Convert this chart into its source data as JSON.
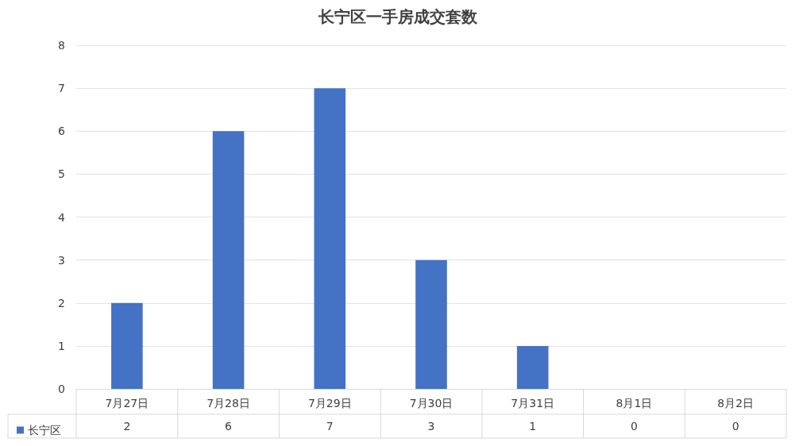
{
  "chart_data": {
    "type": "bar",
    "title": "长宁区一手房成交套数",
    "categories": [
      "7月27日",
      "7月28日",
      "7月29日",
      "7月30日",
      "7月31日",
      "8月1日",
      "8月2日"
    ],
    "series": [
      {
        "name": "长宁区",
        "color": "#4472c4",
        "values": [
          2,
          6,
          7,
          3,
          1,
          0,
          0
        ]
      }
    ],
    "ylim": [
      0,
      8
    ],
    "yticks": [
      0,
      1,
      2,
      3,
      4,
      5,
      6,
      7,
      8
    ],
    "grid": "y",
    "legend": "bottom",
    "data_labels": true
  }
}
